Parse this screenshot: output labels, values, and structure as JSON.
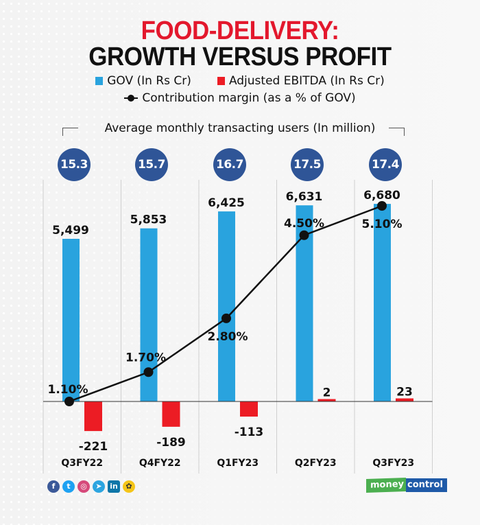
{
  "title": {
    "line1": "FOOD-DELIVERY:",
    "line2": "GROWTH VERSUS PROFIT"
  },
  "legend": {
    "gov": "GOV (In Rs Cr)",
    "ebitda": "Adjusted EBITDA (In Rs Cr)",
    "margin": "Contribution margin (as a % of GOV)"
  },
  "users": {
    "title": "Average monthly transacting users (In million)",
    "values": [
      "15.3",
      "15.7",
      "16.7",
      "17.5",
      "17.4"
    ]
  },
  "colors": {
    "gov": "#29a3de",
    "ebitda": "#ec1c24",
    "line": "#111111",
    "circle": "#2f5597",
    "title_red": "#e3182d"
  },
  "chart_data": {
    "type": "bar",
    "title": "FOOD-DELIVERY: GROWTH VERSUS PROFIT",
    "xlabel": "",
    "ylabel": "",
    "categories": [
      "Q3FY22",
      "Q4FY22",
      "Q1FY23",
      "Q2FY23",
      "Q3FY23"
    ],
    "series": [
      {
        "name": "GOV (In Rs Cr)",
        "kind": "bar",
        "values": [
          5499,
          5853,
          6425,
          6631,
          6680
        ],
        "labels": [
          "5,499",
          "5,853",
          "6,425",
          "6,631",
          "6,680"
        ]
      },
      {
        "name": "Adjusted EBITDA (In Rs Cr)",
        "kind": "bar",
        "values": [
          -221,
          -189,
          -113,
          2,
          23
        ],
        "labels": [
          "-221",
          "-189",
          "-113",
          "2",
          "23"
        ]
      },
      {
        "name": "Contribution margin (as a % of GOV)",
        "kind": "line",
        "values": [
          1.1,
          1.7,
          2.8,
          4.5,
          5.1
        ],
        "labels": [
          "1.10%",
          "1.70%",
          "2.80%",
          "4.50%",
          "5.10%"
        ]
      },
      {
        "name": "Average monthly transacting users (In million)",
        "kind": "annotation",
        "values": [
          15.3,
          15.7,
          16.7,
          17.5,
          17.4
        ]
      }
    ],
    "legend": "top-center",
    "grid": "vertical dividers between categories"
  },
  "footer": {
    "social_icons": [
      "facebook-icon",
      "twitter-icon",
      "instagram-icon",
      "telegram-icon",
      "linkedin-icon",
      "koo-icon"
    ],
    "brand_left": "money",
    "brand_right": "control"
  }
}
